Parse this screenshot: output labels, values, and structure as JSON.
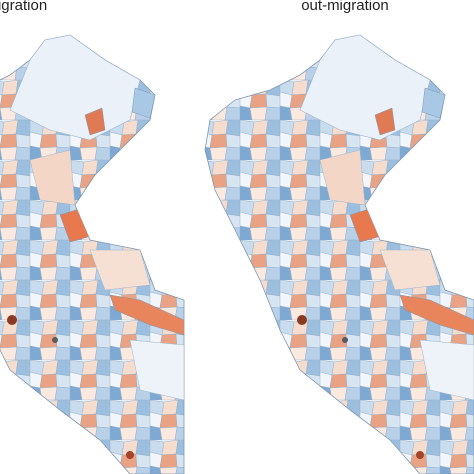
{
  "maps": [
    {
      "title": "in-migration"
    },
    {
      "title": "out-migration"
    }
  ]
}
